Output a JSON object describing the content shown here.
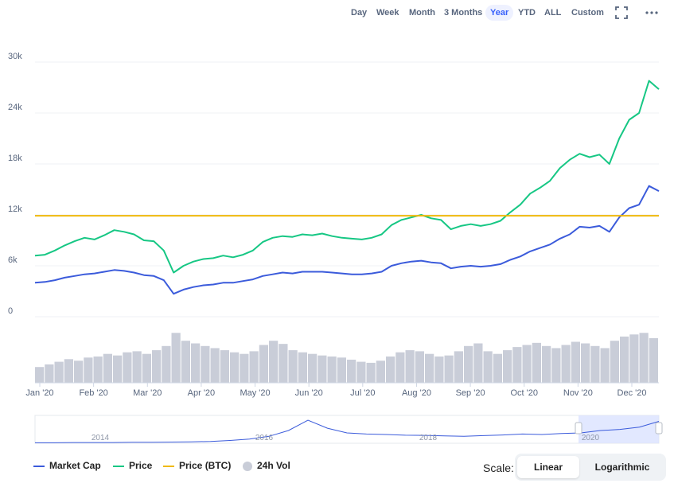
{
  "toolbar": {
    "ranges": [
      "Day",
      "Week",
      "Month",
      "3 Months",
      "Year",
      "YTD",
      "ALL",
      "Custom"
    ],
    "active_range": "Year",
    "icons": [
      "fullscreen-icon",
      "more-options-icon"
    ]
  },
  "legend": {
    "items": [
      {
        "label": "Market Cap",
        "color": "#3b5bdb"
      },
      {
        "label": "Price",
        "color": "#16c784"
      },
      {
        "label": "Price (BTC)",
        "color": "#f0b90b"
      },
      {
        "label": "24h Vol",
        "color": "#c9cdd8"
      }
    ]
  },
  "scale": {
    "label": "Scale:",
    "options": [
      "Linear",
      "Logarithmic"
    ],
    "active": "Linear"
  },
  "chart_data": {
    "type": "line",
    "yticks": [
      "30k",
      "24k",
      "18k",
      "12k",
      "6k",
      "0"
    ],
    "ylim": [
      0,
      30000
    ],
    "xticks": [
      "Jan '20",
      "Feb '20",
      "Mar '20",
      "Apr '20",
      "May '20",
      "Jun '20",
      "Jul '20",
      "Aug '20",
      "Sep '20",
      "Oct '20",
      "Nov '20",
      "Dec '20"
    ],
    "grid": true,
    "series": [
      {
        "name": "Price",
        "color": "#16c784",
        "values": [
          7200,
          7300,
          7800,
          8400,
          8900,
          9300,
          9100,
          9600,
          10200,
          10000,
          9700,
          9000,
          8900,
          7800,
          5200,
          6000,
          6500,
          6800,
          6900,
          7200,
          7000,
          7300,
          7800,
          8800,
          9300,
          9500,
          9400,
          9700,
          9600,
          9800,
          9500,
          9300,
          9200,
          9100,
          9300,
          9700,
          10800,
          11400,
          11700,
          12000,
          11600,
          11400,
          10300,
          10700,
          10900,
          10700,
          10900,
          11300,
          12300,
          13200,
          14500,
          15200,
          16000,
          17500,
          18500,
          19200,
          18800,
          19100,
          18000,
          21000,
          23200,
          24000,
          27800,
          26800
        ]
      },
      {
        "name": "Market Cap",
        "color": "#3b5bdb",
        "values": [
          4000,
          4100,
          4300,
          4600,
          4800,
          5000,
          5100,
          5300,
          5500,
          5400,
          5200,
          4900,
          4800,
          4300,
          2700,
          3200,
          3500,
          3700,
          3800,
          4000,
          4000,
          4200,
          4400,
          4800,
          5000,
          5200,
          5100,
          5300,
          5300,
          5300,
          5200,
          5100,
          5000,
          5000,
          5100,
          5300,
          6000,
          6300,
          6500,
          6600,
          6400,
          6300,
          5700,
          5900,
          6000,
          5900,
          6000,
          6200,
          6700,
          7100,
          7700,
          8100,
          8500,
          9200,
          9700,
          10600,
          10500,
          10700,
          10000,
          11700,
          12800,
          13200,
          15400,
          14800
        ]
      },
      {
        "name": "Price (BTC)",
        "color": "#f0b90b",
        "values": [
          11900,
          11900
        ]
      }
    ],
    "volume": {
      "name": "24h Vol",
      "color": "#c9cdd8",
      "values": [
        0.3,
        0.35,
        0.4,
        0.45,
        0.42,
        0.48,
        0.5,
        0.55,
        0.52,
        0.58,
        0.6,
        0.55,
        0.62,
        0.7,
        0.95,
        0.8,
        0.75,
        0.7,
        0.66,
        0.62,
        0.58,
        0.55,
        0.6,
        0.72,
        0.8,
        0.74,
        0.62,
        0.58,
        0.55,
        0.52,
        0.5,
        0.48,
        0.44,
        0.4,
        0.38,
        0.42,
        0.5,
        0.58,
        0.62,
        0.6,
        0.55,
        0.5,
        0.52,
        0.6,
        0.7,
        0.75,
        0.6,
        0.55,
        0.62,
        0.68,
        0.72,
        0.76,
        0.7,
        0.66,
        0.72,
        0.78,
        0.75,
        0.7,
        0.66,
        0.8,
        0.88,
        0.92,
        0.95,
        0.85
      ]
    },
    "navigator": {
      "labels": [
        "2014",
        "2016",
        "2018",
        "2020"
      ],
      "values": [
        0.02,
        0.02,
        0.03,
        0.03,
        0.03,
        0.04,
        0.04,
        0.05,
        0.06,
        0.08,
        0.12,
        0.18,
        0.3,
        0.55,
        1.0,
        0.65,
        0.45,
        0.4,
        0.38,
        0.35,
        0.34,
        0.32,
        0.3,
        0.33,
        0.36,
        0.4,
        0.38,
        0.42,
        0.45,
        0.55,
        0.6,
        0.7,
        0.95
      ]
    }
  }
}
